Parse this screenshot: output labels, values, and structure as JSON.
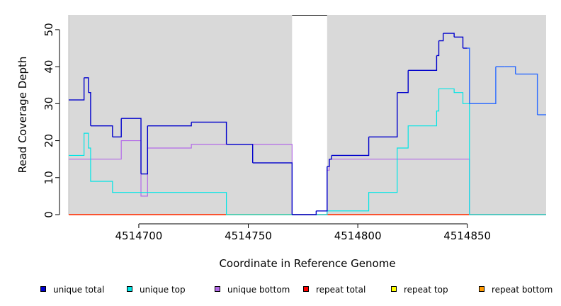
{
  "chart_data": {
    "type": "line",
    "xlabel": "Coordinate in Reference Genome",
    "ylabel": "Read Coverage Depth",
    "xlim": [
      4514668,
      4514886
    ],
    "ylim": [
      0,
      54
    ],
    "x_ticks": [
      4514700,
      4514750,
      4514800,
      4514850
    ],
    "y_ticks": [
      0,
      10,
      20,
      30,
      40,
      50
    ],
    "grid": false,
    "background_color": "#d9d9d9",
    "gap_region": [
      4514770,
      4514786
    ],
    "legend_position": "bottom",
    "series": [
      {
        "name": "unique total",
        "color": "#0000cc",
        "x": [
          4514668,
          4514675,
          4514677,
          4514678,
          4514688,
          4514692,
          4514701,
          4514704,
          4514724,
          4514740,
          4514752,
          4514770,
          4514781,
          4514786,
          4514787,
          4514788,
          4514805,
          4514818,
          4514823,
          4514836,
          4514837,
          4514839,
          4514844,
          4514848,
          4514850,
          4514851,
          4514863,
          4514867,
          4514872,
          4514882,
          4514886
        ],
        "y": [
          31,
          37,
          33,
          24,
          21,
          26,
          11,
          24,
          25,
          19,
          14,
          0,
          1,
          13,
          15,
          16,
          21,
          33,
          39,
          43,
          47,
          49,
          48,
          45,
          45,
          30,
          40,
          40,
          38,
          27,
          27
        ],
        "step_colors": [
          "#0000cc",
          "#0000cc",
          "#0000cc",
          "#0000cc",
          "#0000cc",
          "#0000cc",
          "#0000cc",
          "#0000cc",
          "#0000cc",
          "#0000cc",
          "#0000cc",
          "#0000cc",
          "#0000cc",
          "#0000cc",
          "#0000cc",
          "#0000cc",
          "#0000cc",
          "#0000cc",
          "#0000cc",
          "#0000cc",
          "#0000cc",
          "#0000cc",
          "#0000cc",
          "#0000cc",
          "#2a6aff",
          "#2a6aff",
          "#2a6aff",
          "#2a6aff",
          "#2a6aff",
          "#2a6aff"
        ]
      },
      {
        "name": "unique top",
        "color": "#00e5e5",
        "x": [
          4514668,
          4514675,
          4514677,
          4514678,
          4514688,
          4514740,
          4514770,
          4514786,
          4514805,
          4514813,
          4514818,
          4514823,
          4514836,
          4514837,
          4514839,
          4514844,
          4514848,
          4514851,
          4514886
        ],
        "y": [
          16,
          22,
          18,
          9,
          6,
          0,
          0,
          1,
          6,
          6,
          18,
          24,
          28,
          34,
          34,
          33,
          30,
          0,
          0
        ]
      },
      {
        "name": "unique bottom",
        "color": "#b36ae8",
        "x": [
          4514668,
          4514692,
          4514701,
          4514704,
          4514724,
          4514740,
          4514770,
          4514786,
          4514787,
          4514851,
          4514886
        ],
        "y": [
          15,
          20,
          5,
          18,
          19,
          19,
          0,
          12,
          15,
          0,
          0
        ]
      },
      {
        "name": "repeat total",
        "color": "#ff0000",
        "x": [
          4514668,
          4514886
        ],
        "y": [
          0,
          0
        ]
      },
      {
        "name": "repeat top",
        "color": "#ffff00",
        "x": [
          4514668,
          4514886
        ],
        "y": [
          0,
          0
        ]
      },
      {
        "name": "repeat bottom",
        "color": "#ff9900",
        "x": [
          4514668,
          4514886
        ],
        "y": [
          0,
          0
        ]
      }
    ]
  }
}
